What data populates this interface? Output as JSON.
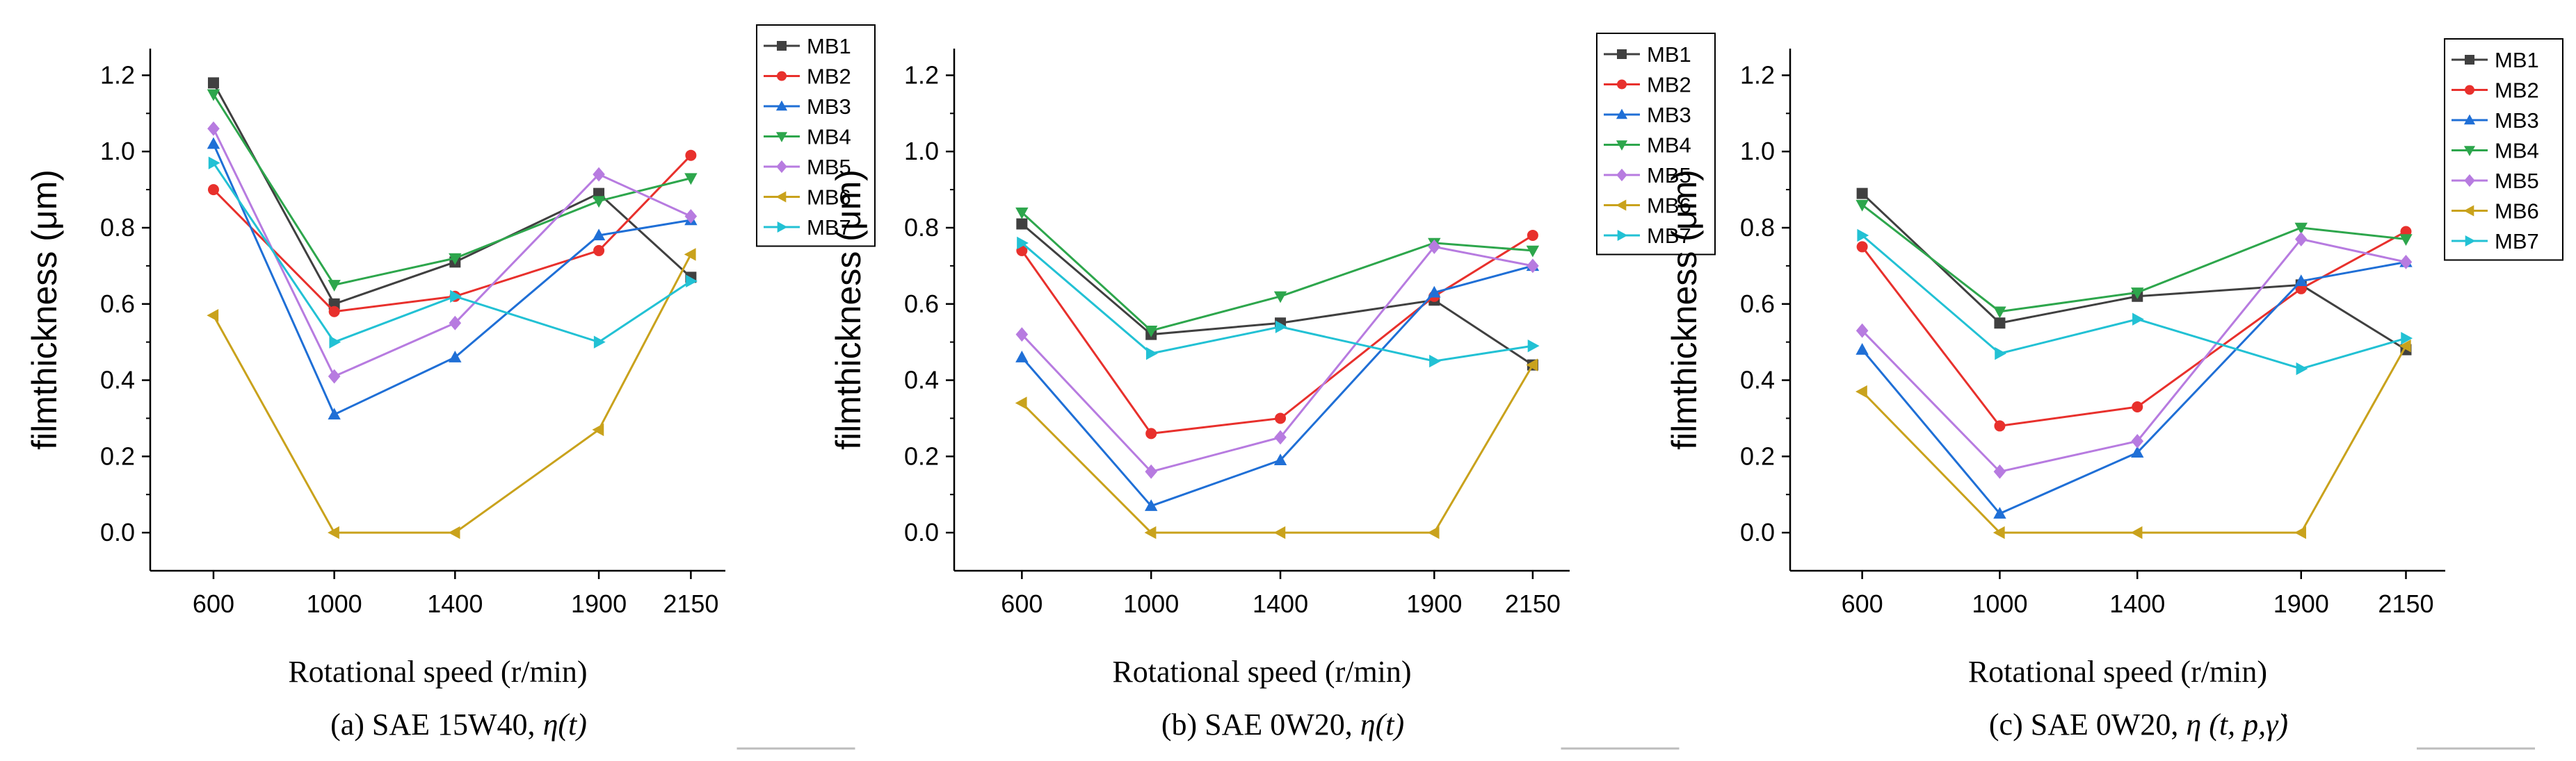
{
  "chart_data": [
    {
      "type": "line",
      "caption": "(a) SAE 15W40,",
      "caption_math": "η(t)",
      "xlabel": "Rotational speed (r/min)",
      "ylabel": "filmthickness (μm)",
      "categories": [
        "600",
        "1000",
        "1400",
        "1900",
        "2150"
      ],
      "yticks": [
        "0.0",
        "0.2",
        "0.4",
        "0.6",
        "0.8",
        "1.0",
        "1.2"
      ],
      "ylim": [
        -0.1,
        1.27
      ],
      "series": [
        {
          "name": "MB1",
          "color": "#404040",
          "marker": "square",
          "values": [
            1.18,
            0.6,
            0.71,
            0.89,
            0.67
          ]
        },
        {
          "name": "MB2",
          "color": "#e8302c",
          "marker": "circle",
          "values": [
            0.9,
            0.58,
            0.62,
            0.74,
            0.99
          ]
        },
        {
          "name": "MB3",
          "color": "#1f6fd6",
          "marker": "triangle-up",
          "values": [
            1.02,
            0.31,
            0.46,
            0.78,
            0.82
          ]
        },
        {
          "name": "MB4",
          "color": "#2da64c",
          "marker": "triangle-down",
          "values": [
            1.15,
            0.65,
            0.72,
            0.87,
            0.93
          ]
        },
        {
          "name": "MB5",
          "color": "#b77be0",
          "marker": "diamond",
          "values": [
            1.06,
            0.41,
            0.55,
            0.94,
            0.83
          ]
        },
        {
          "name": "MB6",
          "color": "#c9a21c",
          "marker": "triangle-left",
          "values": [
            0.57,
            0.0,
            0.0,
            0.27,
            0.73
          ]
        },
        {
          "name": "MB7",
          "color": "#22c1d4",
          "marker": "triangle-right",
          "values": [
            0.97,
            0.5,
            0.62,
            0.5,
            0.66
          ]
        }
      ]
    },
    {
      "type": "line",
      "caption": "(b) SAE 0W20,",
      "caption_math": "η(t)",
      "xlabel": "Rotational speed (r/min)",
      "ylabel": "filmthickness (μm)",
      "categories": [
        "600",
        "1000",
        "1400",
        "1900",
        "2150"
      ],
      "yticks": [
        "0.0",
        "0.2",
        "0.4",
        "0.6",
        "0.8",
        "1.0",
        "1.2"
      ],
      "ylim": [
        -0.1,
        1.27
      ],
      "series": [
        {
          "name": "MB1",
          "color": "#404040",
          "marker": "square",
          "values": [
            0.81,
            0.52,
            0.55,
            0.61,
            0.44
          ]
        },
        {
          "name": "MB2",
          "color": "#e8302c",
          "marker": "circle",
          "values": [
            0.74,
            0.26,
            0.3,
            0.62,
            0.78
          ]
        },
        {
          "name": "MB3",
          "color": "#1f6fd6",
          "marker": "triangle-up",
          "values": [
            0.46,
            0.07,
            0.19,
            0.63,
            0.7
          ]
        },
        {
          "name": "MB4",
          "color": "#2da64c",
          "marker": "triangle-down",
          "values": [
            0.84,
            0.53,
            0.62,
            0.76,
            0.74
          ]
        },
        {
          "name": "MB5",
          "color": "#b77be0",
          "marker": "diamond",
          "values": [
            0.52,
            0.16,
            0.25,
            0.75,
            0.7
          ]
        },
        {
          "name": "MB6",
          "color": "#c9a21c",
          "marker": "triangle-left",
          "values": [
            0.34,
            0.0,
            0.0,
            0.0,
            0.44
          ]
        },
        {
          "name": "MB7",
          "color": "#22c1d4",
          "marker": "triangle-right",
          "values": [
            0.76,
            0.47,
            0.54,
            0.45,
            0.49
          ]
        }
      ]
    },
    {
      "type": "line",
      "caption": "(c) SAE 0W20,",
      "caption_math": "η (t, p,γ̇)",
      "xlabel": "Rotational speed (r/min)",
      "ylabel": "filmthickness (μm)",
      "categories": [
        "600",
        "1000",
        "1400",
        "1900",
        "2150"
      ],
      "yticks": [
        "0.0",
        "0.2",
        "0.4",
        "0.6",
        "0.8",
        "1.0",
        "1.2"
      ],
      "ylim": [
        -0.1,
        1.27
      ],
      "series": [
        {
          "name": "MB1",
          "color": "#404040",
          "marker": "square",
          "values": [
            0.89,
            0.55,
            0.62,
            0.65,
            0.48
          ]
        },
        {
          "name": "MB2",
          "color": "#e8302c",
          "marker": "circle",
          "values": [
            0.75,
            0.28,
            0.33,
            0.64,
            0.79
          ]
        },
        {
          "name": "MB3",
          "color": "#1f6fd6",
          "marker": "triangle-up",
          "values": [
            0.48,
            0.05,
            0.21,
            0.66,
            0.71
          ]
        },
        {
          "name": "MB4",
          "color": "#2da64c",
          "marker": "triangle-down",
          "values": [
            0.86,
            0.58,
            0.63,
            0.8,
            0.77
          ]
        },
        {
          "name": "MB5",
          "color": "#b77be0",
          "marker": "diamond",
          "values": [
            0.53,
            0.16,
            0.24,
            0.77,
            0.71
          ]
        },
        {
          "name": "MB6",
          "color": "#c9a21c",
          "marker": "triangle-left",
          "values": [
            0.37,
            0.0,
            0.0,
            0.0,
            0.49
          ]
        },
        {
          "name": "MB7",
          "color": "#22c1d4",
          "marker": "triangle-right",
          "values": [
            0.78,
            0.47,
            0.56,
            0.43,
            0.51
          ]
        }
      ]
    }
  ]
}
